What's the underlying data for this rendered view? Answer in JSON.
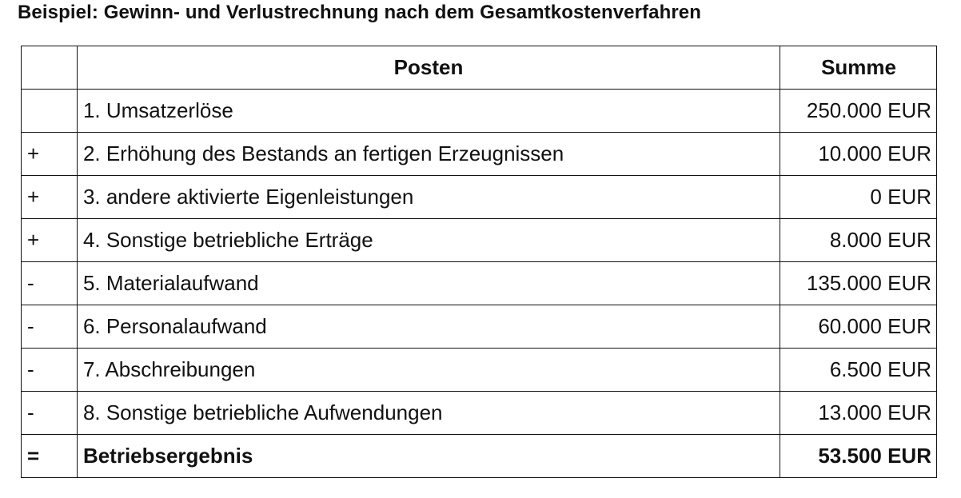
{
  "title": "Beispiel: Gewinn- und Verlustrechnung nach dem Gesamtkostenverfahren",
  "table": {
    "headers": [
      "",
      "Posten",
      "Summe"
    ],
    "rows": [
      {
        "op": "",
        "item": "1. Umsatzerlöse",
        "sum": "250.000 EUR"
      },
      {
        "op": "+",
        "item": "2. Erhöhung des Bestands an fertigen Erzeugnissen",
        "sum": "10.000 EUR"
      },
      {
        "op": "+",
        "item": "3. andere aktivierte Eigenleistungen",
        "sum": "0 EUR"
      },
      {
        "op": "+",
        "item": "4. Sonstige betriebliche Erträge",
        "sum": "8.000 EUR"
      },
      {
        "op": "-",
        "item": "5. Materialaufwand",
        "sum": "135.000 EUR"
      },
      {
        "op": "-",
        "item": "6. Personalaufwand",
        "sum": "60.000 EUR"
      },
      {
        "op": "-",
        "item": "7. Abschreibungen",
        "sum": "6.500 EUR"
      },
      {
        "op": "-",
        "item": "8. Sonstige betriebliche Aufwendungen",
        "sum": "13.000 EUR"
      }
    ],
    "total": {
      "op": "=",
      "item": "Betriebsergebnis",
      "sum": "53.500 EUR"
    }
  }
}
